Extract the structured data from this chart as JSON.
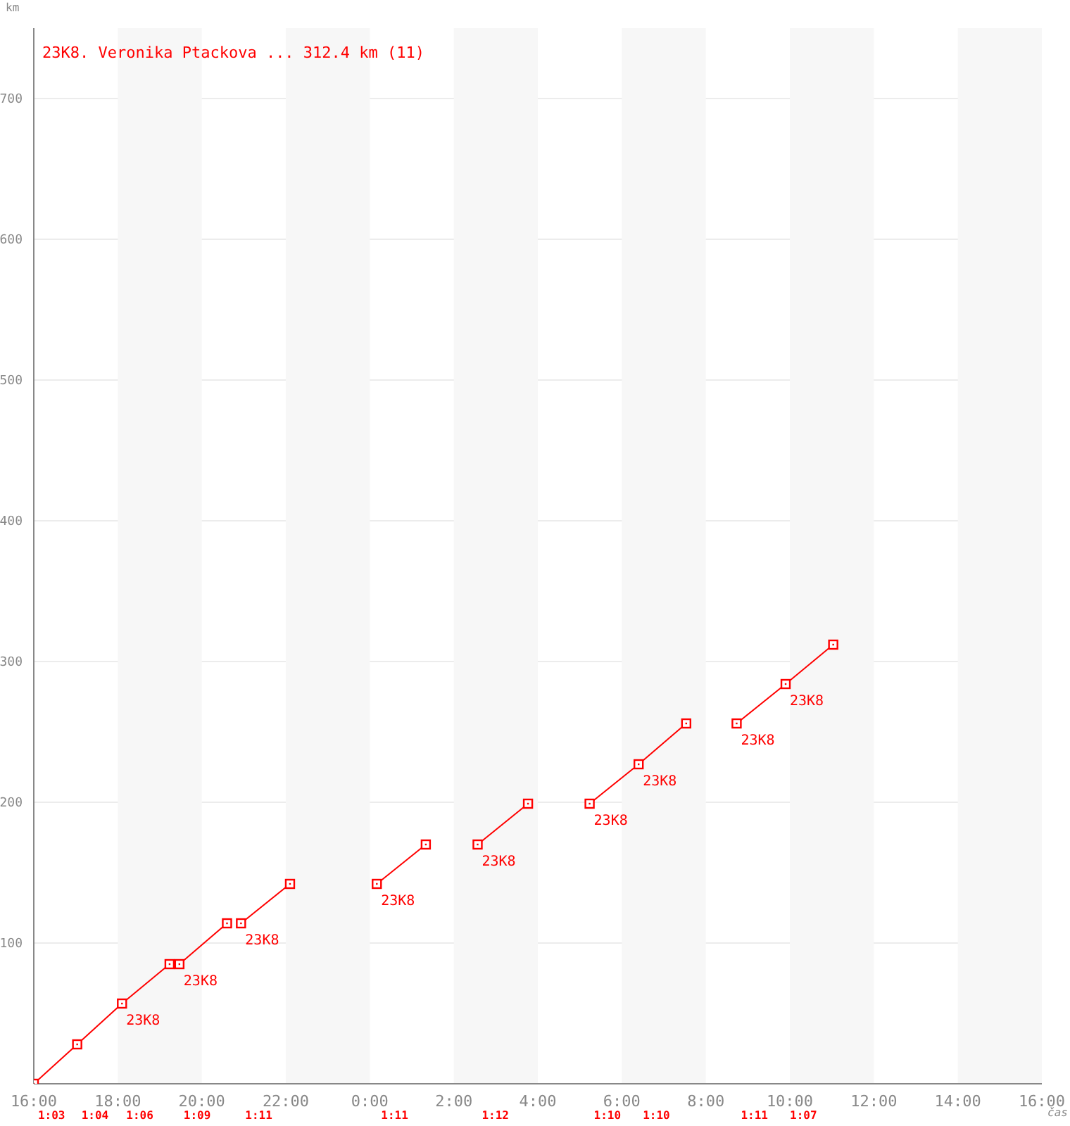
{
  "chart_data": {
    "type": "line",
    "title": "23K8. Veronika Ptackova ... 312.4 km (11)",
    "xlabel": "čas",
    "ylabel": "km",
    "xlim": [
      "2000-01-01T16:00",
      "2000-01-02T16:00"
    ],
    "xticks": [
      {
        "value": "2000-01-01T16:00",
        "label": "16:00"
      },
      {
        "value": "2000-01-01T18:00",
        "label": "18:00"
      },
      {
        "value": "2000-01-01T20:00",
        "label": "20:00"
      },
      {
        "value": "2000-01-01T22:00",
        "label": "22:00"
      },
      {
        "value": "2000-01-02T00:00",
        "label": "0:00"
      },
      {
        "value": "2000-01-02T02:00",
        "label": "2:00"
      },
      {
        "value": "2000-01-02T04:00",
        "label": "4:00"
      },
      {
        "value": "2000-01-02T06:00",
        "label": "6:00"
      },
      {
        "value": "2000-01-02T08:00",
        "label": "8:00"
      },
      {
        "value": "2000-01-02T10:00",
        "label": "10:00"
      },
      {
        "value": "2000-01-02T12:00",
        "label": "12:00"
      },
      {
        "value": "2000-01-02T14:00",
        "label": "14:00"
      },
      {
        "value": "2000-01-02T16:00",
        "label": "16:00"
      }
    ],
    "ylim": [
      0,
      750
    ],
    "yticks": [
      100,
      200,
      300,
      400,
      500,
      600,
      700
    ],
    "grid": "y",
    "marker": "square",
    "line_style": "solid",
    "bands": [
      {
        "axis": "x",
        "from": "2000-01-01T18:00",
        "to": "2000-01-01T20:00",
        "color": "#f7f7f7"
      },
      {
        "axis": "x",
        "from": "2000-01-01T22:00",
        "to": "2000-01-02T00:00",
        "color": "#f7f7f7"
      },
      {
        "axis": "x",
        "from": "2000-01-02T02:00",
        "to": "2000-01-02T04:00",
        "color": "#f7f7f7"
      },
      {
        "axis": "x",
        "from": "2000-01-02T06:00",
        "to": "2000-01-02T08:00",
        "color": "#f7f7f7"
      },
      {
        "axis": "x",
        "from": "2000-01-02T10:00",
        "to": "2000-01-02T12:00",
        "color": "#f7f7f7"
      },
      {
        "axis": "x",
        "from": "2000-01-02T14:00",
        "to": "2000-01-02T16:00",
        "color": "#f7f7f7"
      }
    ],
    "series": [
      {
        "color": "#ff0000",
        "x": [
          "2000-01-01T16:00",
          "2000-01-01T17:02",
          "2000-01-01T18:06",
          "2000-01-01T19:14"
        ],
        "values": [
          0,
          28,
          57,
          85
        ]
      },
      {
        "color": "#ff0000",
        "x": [
          "2000-01-01T19:28",
          "2000-01-01T20:36"
        ],
        "values": [
          85,
          114
        ]
      },
      {
        "color": "#ff0000",
        "x": [
          "2000-01-01T20:56",
          "2000-01-01T22:06"
        ],
        "values": [
          114,
          142
        ]
      },
      {
        "color": "#ff0000",
        "x": [
          "2000-01-02T00:10",
          "2000-01-02T01:20"
        ],
        "values": [
          142,
          170
        ]
      },
      {
        "color": "#ff0000",
        "x": [
          "2000-01-02T02:34",
          "2000-01-02T03:46"
        ],
        "values": [
          170,
          199
        ]
      },
      {
        "color": "#ff0000",
        "x": [
          "2000-01-02T05:14",
          "2000-01-02T06:24",
          "2000-01-02T07:32"
        ],
        "values": [
          199,
          227,
          256
        ]
      },
      {
        "color": "#ff0000",
        "x": [
          "2000-01-02T08:44",
          "2000-01-02T09:54",
          "2000-01-02T11:02"
        ],
        "values": [
          256,
          284,
          312
        ]
      }
    ],
    "annotations": [
      {
        "text": "23K8",
        "x": "2000-01-01T18:06",
        "y": 57
      },
      {
        "text": "23K8",
        "x": "2000-01-01T19:28",
        "y": 85
      },
      {
        "text": "23K8",
        "x": "2000-01-01T20:56",
        "y": 114
      },
      {
        "text": "23K8",
        "x": "2000-01-02T00:10",
        "y": 142
      },
      {
        "text": "23K8",
        "x": "2000-01-02T02:34",
        "y": 170
      },
      {
        "text": "23K8",
        "x": "2000-01-02T05:14",
        "y": 199
      },
      {
        "text": "23K8",
        "x": "2000-01-02T06:24",
        "y": 227
      },
      {
        "text": "23K8",
        "x": "2000-01-02T08:44",
        "y": 256
      },
      {
        "text": "23K8",
        "x": "2000-01-02T09:54",
        "y": 284
      },
      "1:03",
      "1:04",
      "1:06",
      "1:09",
      "1:11",
      "1:11",
      "1:12",
      "1:10",
      "1:10",
      "1:11",
      "1:07"
    ]
  }
}
